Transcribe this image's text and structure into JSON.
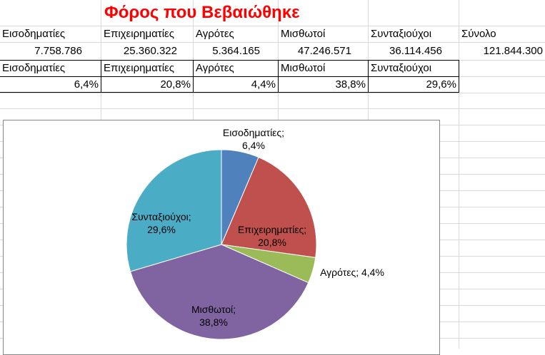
{
  "title": "Φόρος που Βεβαιώθηκε",
  "row1": {
    "headers": [
      "Εισοδηματίες",
      "Επιχειρηματίες",
      "Αγρότες",
      "Μισθωτοί",
      "Συνταξιούχοι",
      "Σύνολο"
    ]
  },
  "row2": {
    "values": [
      "7.758.786",
      "25.360.322",
      "5.364.165",
      "47.246.571",
      "36.114.456",
      "121.844.300"
    ]
  },
  "row3": {
    "headers": [
      "Εισοδηματίες",
      "Επιχειρηματίες",
      "Αγρότες",
      "Μισθωτοί",
      "Συνταξιούχοι"
    ]
  },
  "row4": {
    "values": [
      "6,4%",
      "20,8%",
      "4,4%",
      "38,8%",
      "29,6%"
    ]
  },
  "chart_data": {
    "type": "pie",
    "categories": [
      "Εισοδηματίες",
      "Επιχειρηματίες",
      "Αγρότες",
      "Μισθωτοί",
      "Συνταξιούχοι"
    ],
    "values": [
      6.4,
      20.8,
      4.4,
      38.8,
      29.6
    ],
    "labels": [
      [
        "Εισοδηματίες;",
        "6,4%"
      ],
      [
        "Επιχειρηματίες;",
        "20,8%"
      ],
      [
        "Αγρότες; 4,4%"
      ],
      [
        "Μισθωτοί;",
        "38,8%"
      ],
      [
        "Συνταξιούχοι;",
        "29,6%"
      ]
    ],
    "colors": [
      "#4f81bd",
      "#c0504d",
      "#9bbb59",
      "#8064a2",
      "#4bacc6"
    ],
    "start_angle": "12 o'clock",
    "direction": "clockwise",
    "legend": "none"
  }
}
